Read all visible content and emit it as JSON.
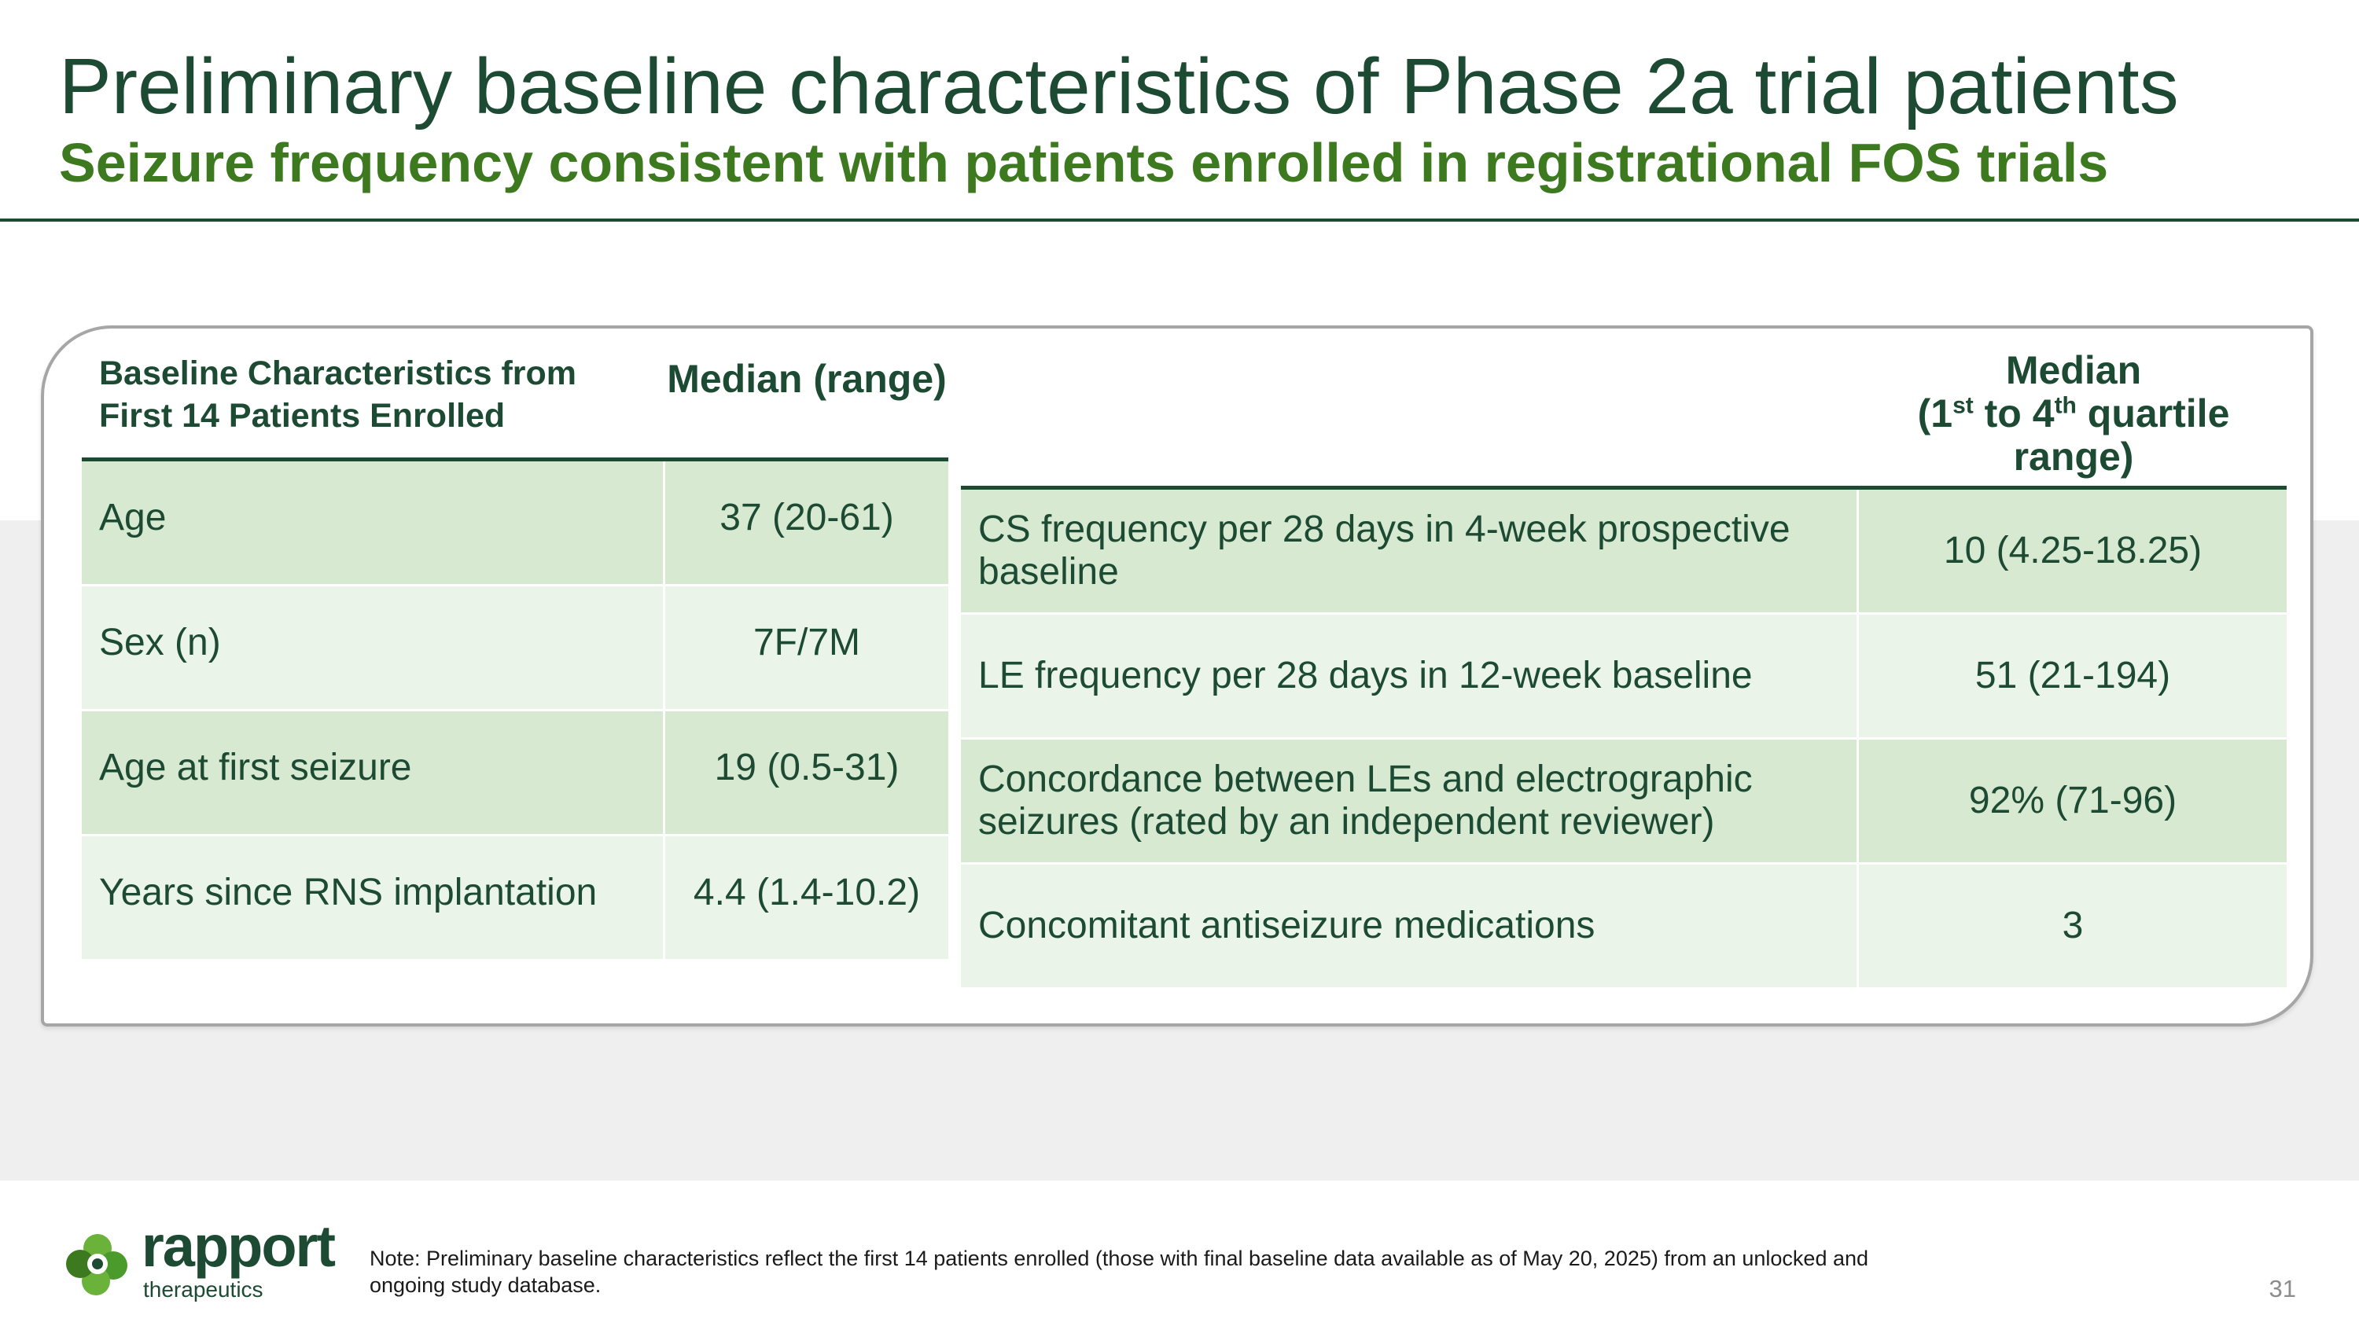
{
  "slide": {
    "title": "Preliminary baseline characteristics of Phase 2a trial patients",
    "subtitle": "Seizure frequency consistent with patients enrolled in registrational FOS trials",
    "page_number": "31"
  },
  "left_table": {
    "header_label": "Baseline Characteristics from First 14 Patients Enrolled",
    "header_median": "Median (range)",
    "rows": [
      {
        "label": "Age",
        "value": "37 (20-61)"
      },
      {
        "label": "Sex (n)",
        "value": "7F/7M"
      },
      {
        "label": "Age at first seizure",
        "value": "19 (0.5-31)"
      },
      {
        "label": "Years since RNS implantation",
        "value": "4.4 (1.4-10.2)"
      }
    ]
  },
  "right_table": {
    "header_median_line1": "Median",
    "header_median_open": "(1",
    "header_median_sup1": "st",
    "header_median_mid": " to 4",
    "header_median_sup2": "th",
    "header_median_end": " quartile range)",
    "rows": [
      {
        "label": "CS frequency per 28 days in 4-week prospective baseline",
        "value": "10 (4.25-18.25)"
      },
      {
        "label": "LE frequency per 28 days in 12-week baseline",
        "value": "51 (21-194)"
      },
      {
        "label": "Concordance between LEs and electrographic seizures (rated by an independent reviewer)",
        "value": "92% (71-96)"
      },
      {
        "label": "Concomitant antiseizure medications",
        "value": "3"
      }
    ]
  },
  "footer": {
    "logo_name": "rapport",
    "logo_subtext": "therapeutics",
    "note": "Note: Preliminary baseline characteristics reflect the first 14 patients enrolled (those with final baseline data available as of May 20, 2025) from an unlocked and ongoing study database."
  },
  "colors": {
    "dark_green": "#1d4a33",
    "accent_green": "#3d7a1f",
    "row_dark": "#d8e9d1",
    "row_light": "#ebf4e8"
  }
}
